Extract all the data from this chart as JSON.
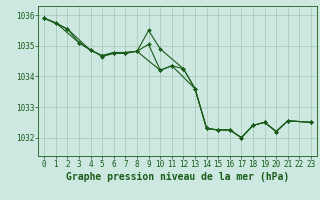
{
  "background_color": "#cce8e0",
  "grid_color": "#aaccbb",
  "line_color": "#1a5c1a",
  "marker_color": "#1a5c1a",
  "title": "Graphe pression niveau de la mer (hPa)",
  "title_fontsize": 7,
  "tick_fontsize": 5.5,
  "xlim": [
    -0.5,
    23.5
  ],
  "ylim": [
    1031.4,
    1036.3
  ],
  "yticks": [
    1032,
    1033,
    1034,
    1035,
    1036
  ],
  "xticks": [
    0,
    1,
    2,
    3,
    4,
    5,
    6,
    7,
    8,
    9,
    10,
    11,
    12,
    13,
    14,
    15,
    16,
    17,
    18,
    19,
    20,
    21,
    22,
    23
  ],
  "series": [
    {
      "x": [
        0,
        1,
        3,
        4,
        5,
        6,
        7,
        8,
        9,
        10,
        11,
        13,
        14,
        15,
        16,
        17,
        18,
        19,
        20,
        21,
        23
      ],
      "y": [
        1035.9,
        1035.75,
        1035.1,
        1034.85,
        1034.68,
        1034.78,
        1034.78,
        1034.82,
        1035.05,
        1034.2,
        1034.35,
        1033.6,
        1032.3,
        1032.25,
        1032.25,
        1032.0,
        1032.4,
        1032.5,
        1032.2,
        1032.55,
        1032.5
      ]
    },
    {
      "x": [
        0,
        2,
        4,
        5,
        6,
        7,
        8,
        10,
        11,
        12,
        13,
        14,
        15,
        16,
        17,
        18,
        19,
        20,
        21,
        23
      ],
      "y": [
        1035.9,
        1035.55,
        1034.85,
        1034.68,
        1034.78,
        1034.78,
        1034.82,
        1034.2,
        1034.35,
        1034.25,
        1033.6,
        1032.3,
        1032.25,
        1032.25,
        1032.0,
        1032.4,
        1032.5,
        1032.2,
        1032.55,
        1032.5
      ]
    },
    {
      "x": [
        0,
        1,
        2,
        3,
        5,
        6,
        7,
        8,
        9,
        10,
        12,
        13,
        14,
        15,
        16,
        17,
        18,
        19,
        20,
        21,
        23
      ],
      "y": [
        1035.9,
        1035.75,
        1035.55,
        1035.1,
        1034.65,
        1034.75,
        1034.75,
        1034.82,
        1035.5,
        1034.9,
        1034.25,
        1033.6,
        1032.3,
        1032.25,
        1032.25,
        1032.0,
        1032.4,
        1032.5,
        1032.2,
        1032.55,
        1032.5
      ]
    }
  ]
}
